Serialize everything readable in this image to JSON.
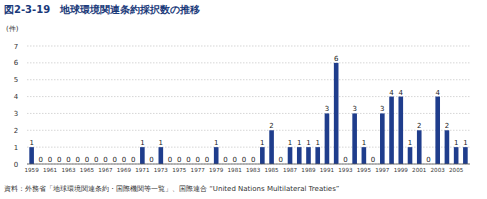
{
  "chart_data": {
    "type": "bar",
    "title": "図2-3-19　地球環境関連条約採択数の推移",
    "y_label": "(件)",
    "source": "資料：外務省「地球環境関連条約・国際機関等一覧」、国際連合 “United Nations Multilateral Treaties”",
    "categories": [
      "1959",
      null,
      "1961",
      null,
      "1963",
      null,
      "1965",
      null,
      "1967",
      null,
      "1969",
      null,
      "1971",
      null,
      "1973",
      null,
      "1975",
      null,
      "1977",
      null,
      "1979",
      null,
      "1981",
      null,
      "1983",
      null,
      "1985",
      null,
      "1987",
      null,
      "1989",
      null,
      "1991",
      null,
      "1993",
      null,
      "1995",
      null,
      "1997",
      null,
      "1999",
      null,
      "2001",
      null,
      "2003",
      null,
      "2005",
      null
    ],
    "values": [
      1,
      0,
      0,
      0,
      0,
      0,
      0,
      0,
      0,
      0,
      0,
      0,
      1,
      0,
      1,
      0,
      0,
      0,
      0,
      0,
      1,
      0,
      0,
      0,
      0,
      1,
      2,
      0,
      1,
      1,
      1,
      1,
      3,
      6,
      0,
      3,
      1,
      0,
      3,
      4,
      4,
      1,
      2,
      0,
      4,
      2,
      1,
      1
    ],
    "color": "#1f3d8c",
    "ylim": [
      0,
      7
    ],
    "yticks": [
      0,
      1,
      2,
      3,
      4,
      5,
      6,
      7
    ],
    "grid": true,
    "data_labels": true
  }
}
